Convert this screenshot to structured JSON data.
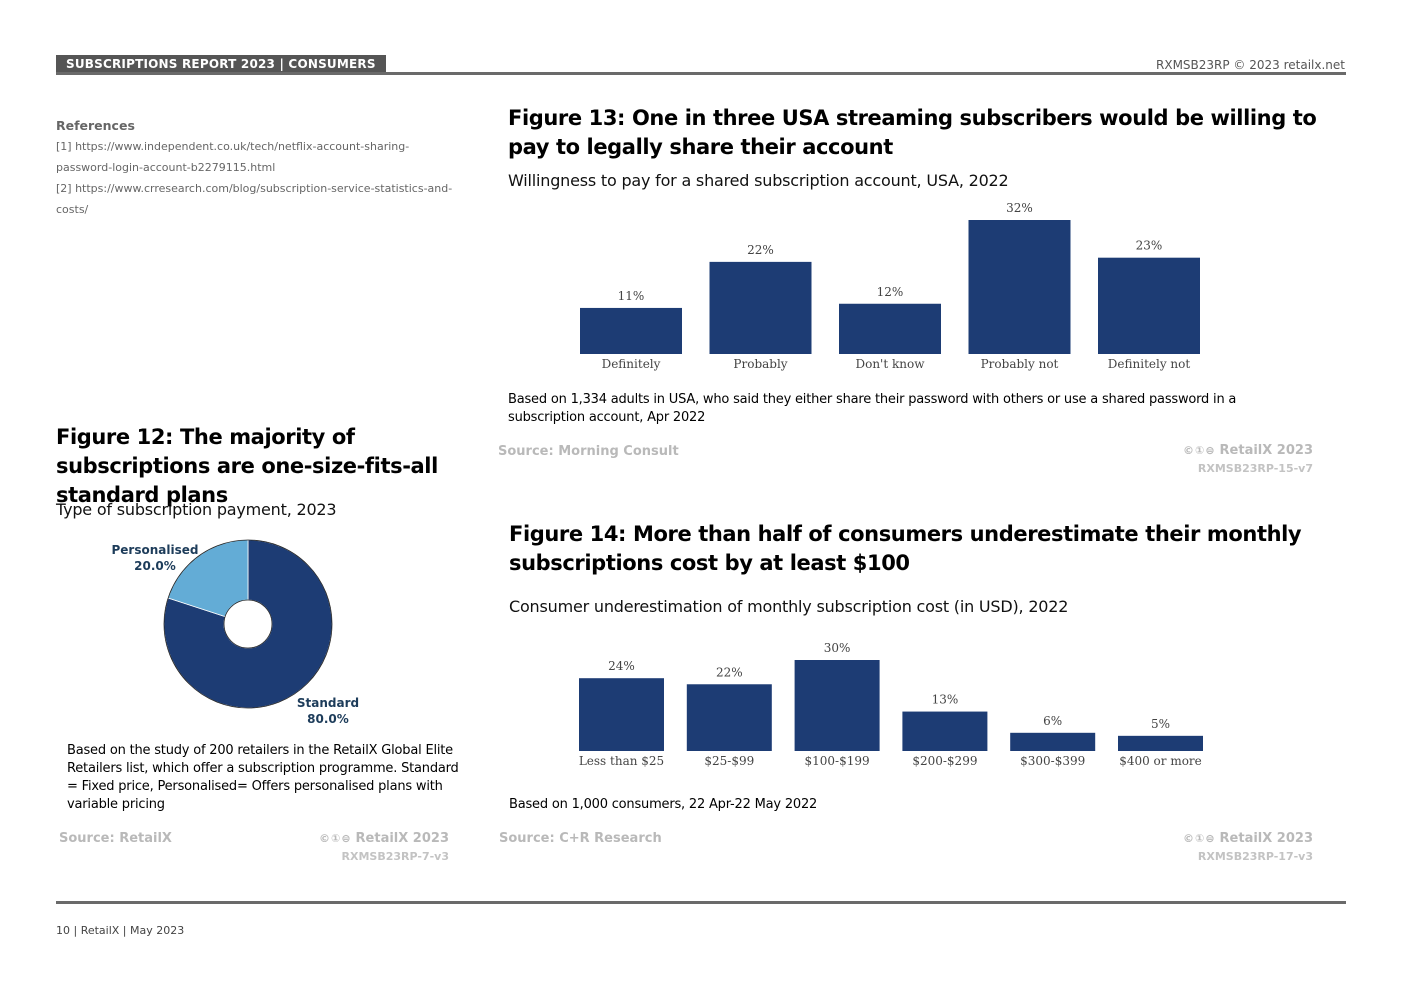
{
  "header": {
    "badge": "SUBSCRIPTIONS REPORT 2023 | CONSUMERS",
    "right": "RXMSB23RP © 2023 retailx.net"
  },
  "references": {
    "title": "References",
    "items": [
      "[1] https://www.independent.co.uk/tech/netflix-account-sharing-password-login-account-b2279115.html",
      "[2] https://www.crresearch.com/blog/subscription-service-statistics-and-costs/"
    ]
  },
  "fig12": {
    "title": "Figure 12: The majority of subscriptions are one-size-fits-all standard plans",
    "subtitle": "Type of subscription payment, 2023",
    "note": "Based on the study of 200 retailers in the RetailX Global Elite Retailers list, which offer a subscription programme. Standard = Fixed price, Personalised= Offers personalised plans with variable pricing",
    "source": "Source: RetailX",
    "cc": "©①⊜",
    "brand": "RetailX 2023",
    "code": "RXMSB23RP-7-v3",
    "colors": {
      "standard": "#1d3c74",
      "personalised": "#63acd6"
    }
  },
  "fig13": {
    "title": "Figure 13: One in three USA streaming subscribers would be willing to pay to legally share their account",
    "subtitle": "Willingness to pay for a shared subscription account, USA, 2022",
    "note": "Based on 1,334 adults in USA, who said they either share their password with others or use a shared password in a subscription account, Apr 2022",
    "source": "Source: Morning Consult",
    "cc": "©①⊜",
    "brand": "RetailX 2023",
    "code": "RXMSB23RP-15-v7",
    "bar_color": "#1d3c74"
  },
  "fig14": {
    "title": "Figure 14: More than half of consumers underestimate their monthly subscriptions cost by at least $100",
    "subtitle": "Consumer underestimation of monthly subscription cost (in USD), 2022",
    "note": "Based on 1,000 consumers, 22 Apr-22 May 2022",
    "source": "Source: C+R Research",
    "cc": "©①⊜",
    "brand": "RetailX 2023",
    "code": "RXMSB23RP-17-v3",
    "bar_color": "#1d3c74"
  },
  "footer": {
    "text": "10 | RetailX | May 2023"
  },
  "chart_data": [
    {
      "type": "pie",
      "title": "Type of subscription payment, 2023",
      "categories": [
        "Personalised",
        "Standard"
      ],
      "values": [
        20.0,
        80.0
      ],
      "labels": [
        "20.0%",
        "80.0%"
      ],
      "donut": true
    },
    {
      "type": "bar",
      "title": "Willingness to pay for a shared subscription account, USA, 2022",
      "categories": [
        "Definitely",
        "Probably",
        "Don't know",
        "Probably not",
        "Definitely not"
      ],
      "values": [
        11,
        22,
        12,
        32,
        23
      ],
      "labels": [
        "11%",
        "22%",
        "12%",
        "32%",
        "23%"
      ],
      "ylim": [
        0,
        32
      ]
    },
    {
      "type": "bar",
      "title": "Consumer underestimation of monthly subscription cost (in USD), 2022",
      "categories": [
        "Less than $25",
        "$25-$99",
        "$100-$199",
        "$200-$299",
        "$300-$399",
        "$400 or more"
      ],
      "values": [
        24,
        22,
        30,
        13,
        6,
        5
      ],
      "labels": [
        "24%",
        "22%",
        "30%",
        "13%",
        "6%",
        "5%"
      ],
      "ylim": [
        0,
        30
      ]
    }
  ]
}
